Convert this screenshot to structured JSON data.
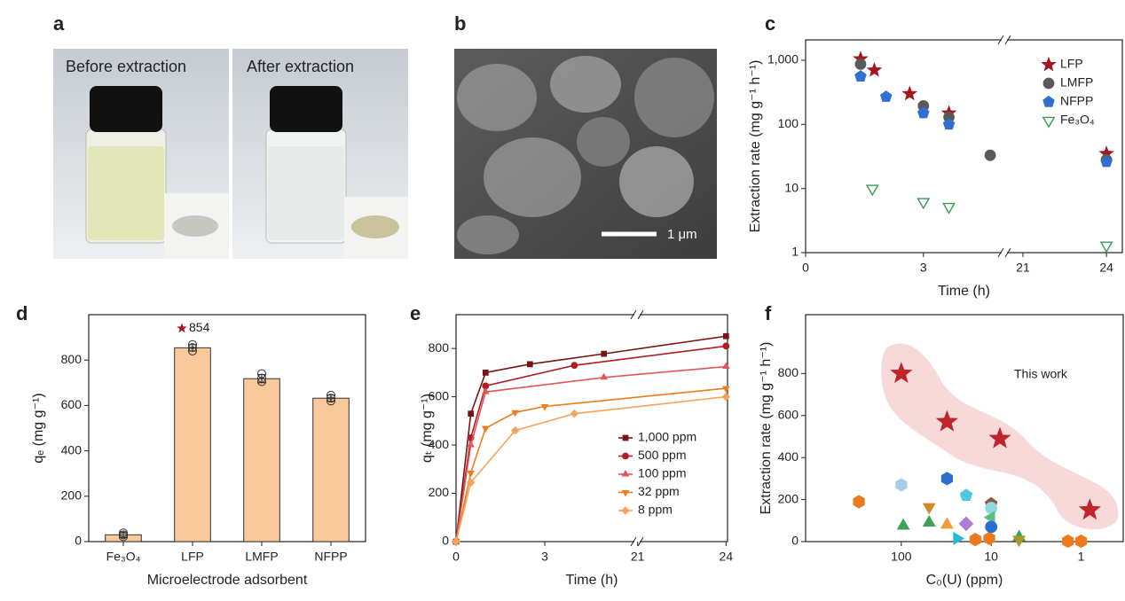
{
  "figure": {
    "panel_labels": [
      "a",
      "b",
      "c",
      "d",
      "e",
      "f"
    ],
    "photo_labels": [
      "Before extraction",
      "After extraction"
    ],
    "scale_bar": "1 μm"
  },
  "chart_data": [
    {
      "type": "scatter",
      "xlabel": "Time (h)",
      "ylabel": "Extraction rate (mg g⁻¹ h⁻¹)",
      "ylog": true,
      "ylim": [
        1,
        2080
      ],
      "yticks": [
        {
          "value": 1000,
          "label": "1,000"
        },
        100,
        10,
        1
      ],
      "x_segments": [
        [
          0,
          4.97
        ],
        [
          20.46,
          24.57
        ]
      ],
      "xticks": [
        0,
        3,
        21,
        24
      ],
      "legend": "upper right",
      "series": [
        {
          "name": "LFP",
          "color": "#a3181f",
          "marker": "star",
          "x": [
            1.4,
            1.75,
            2.65,
            3.65,
            24
          ],
          "values": [
            1050,
            700,
            300,
            150,
            35
          ]
        },
        {
          "name": "LMFP",
          "color": "#5a5a5a",
          "marker": "circle",
          "x": [
            1.4,
            3.0,
            3.65,
            4.7,
            24
          ],
          "values": [
            870,
            195,
            130,
            33,
            28
          ]
        },
        {
          "name": "NFPP",
          "color": "#2f6fd0",
          "marker": "pentagon",
          "x": [
            1.4,
            2.05,
            3.0,
            3.65,
            24
          ],
          "values": [
            560,
            270,
            150,
            100,
            26
          ]
        },
        {
          "name": "Fe₃O₄",
          "color": "#3a9a5a",
          "marker": "triangle-down",
          "hollow": true,
          "x": [
            1.7,
            3.0,
            3.65,
            24
          ],
          "values": [
            10,
            6.2,
            5.2,
            1.3
          ]
        }
      ]
    },
    {
      "type": "bar",
      "xlabel": "Microelectrode adsorbent",
      "ylabel": "qₑ (mg g⁻¹)",
      "categories": [
        "Fe₃O₄",
        "LFP",
        "LMFP",
        "NFPP"
      ],
      "values": [
        30,
        854,
        718,
        632
      ],
      "errors": [
        12,
        14,
        18,
        14
      ],
      "value_labels": [
        null,
        "854",
        null,
        null
      ],
      "points": [
        [
          22,
          38,
          30
        ],
        [
          840,
          855,
          868
        ],
        [
          705,
          720,
          740
        ],
        [
          620,
          632,
          645
        ]
      ],
      "color": "#f9c89b",
      "ylim": [
        0,
        1000
      ],
      "yticks": [
        0,
        200,
        400,
        600,
        800
      ]
    },
    {
      "type": "line",
      "xlabel": "Time (h)",
      "ylabel": "qₜ (mg g⁻¹)",
      "x_segments": [
        [
          0,
          6
        ],
        [
          21.1,
          24.05
        ]
      ],
      "xticks": [
        0,
        3,
        21,
        24
      ],
      "ylim": [
        0,
        940
      ],
      "yticks": [
        0,
        200,
        400,
        600,
        800
      ],
      "legend": "lower right",
      "series": [
        {
          "name": "1,000 ppm",
          "color": "#7a1414",
          "marker": "square",
          "x": [
            0,
            0.5,
            1,
            2.5,
            5,
            24
          ],
          "values": [
            0,
            530,
            700,
            735,
            778,
            851
          ]
        },
        {
          "name": "500 ppm",
          "color": "#b01c22",
          "marker": "circle",
          "x": [
            0,
            0.5,
            1,
            4,
            24
          ],
          "values": [
            0,
            430,
            645,
            730,
            810
          ]
        },
        {
          "name": "100 ppm",
          "color": "#e0575a",
          "marker": "triangle",
          "x": [
            0,
            0.5,
            1,
            5,
            24
          ],
          "values": [
            0,
            400,
            620,
            680,
            725
          ]
        },
        {
          "name": "32 ppm",
          "color": "#ef7b1a",
          "marker": "triangle-down",
          "x": [
            0,
            0.5,
            1,
            2,
            3,
            24
          ],
          "values": [
            0,
            285,
            470,
            535,
            560,
            635
          ]
        },
        {
          "name": "8 ppm",
          "color": "#f4a35a",
          "marker": "diamond",
          "x": [
            0,
            0.5,
            2,
            4,
            24
          ],
          "values": [
            0,
            245,
            460,
            530,
            600
          ]
        }
      ]
    },
    {
      "type": "scatter",
      "xlabel": "C₀(U) (ppm)",
      "ylabel": "Extraction rate (mg g⁻¹ h⁻¹)",
      "annotation": "This work",
      "xlog": true,
      "xlim": [
        1160,
        0.34
      ],
      "xticks": [
        100,
        10,
        1
      ],
      "ylim": [
        0,
        1080
      ],
      "yticks": [
        0,
        200,
        400,
        600,
        800
      ],
      "series": [
        {
          "color": "#c0252b",
          "marker": "star",
          "x": [
            100,
            31,
            8,
            0.8
          ],
          "values": [
            800,
            570,
            490,
            150
          ]
        },
        {
          "x": [
            296,
            100,
            95,
            49,
            49,
            31,
            31,
            24,
            19,
            15,
            19,
            10.5,
            10,
            10,
            10,
            10,
            4.9,
            4.9,
            1.4,
            1.0
          ],
          "values": [
            190,
            270,
            75,
            90,
            165,
            300,
            80,
            15,
            220,
            10,
            85,
            15,
            180,
            160,
            115,
            70,
            20,
            10,
            2,
            2
          ],
          "colors": [
            "#ec7a1c",
            "#a8cde8",
            "#3aa35a",
            "#3aa35a",
            "#d08a2a",
            "#2a6fd0",
            "#f09a3a",
            "#2ab6d8",
            "#4fc8e0",
            "#ec7a1c",
            "#b07ad8",
            "#ec7a1c",
            "#8a5a4a",
            "#8fd8e0",
            "#5ac080",
            "#2a6fd0",
            "#3aa35a",
            "#a89a2a",
            "#ec7a1c",
            "#ec7a1c"
          ],
          "markers": [
            "hexagon",
            "hexagon",
            "triangle",
            "triangle",
            "triangle-down",
            "hexagon",
            "triangle",
            "triangle-right",
            "pentagon",
            "hexagon",
            "diamond",
            "hexagon",
            "pentagon",
            "circle",
            "triangle-left",
            "circle",
            "triangle",
            "triangle-down",
            "hexagon",
            "hexagon"
          ]
        }
      ]
    }
  ]
}
